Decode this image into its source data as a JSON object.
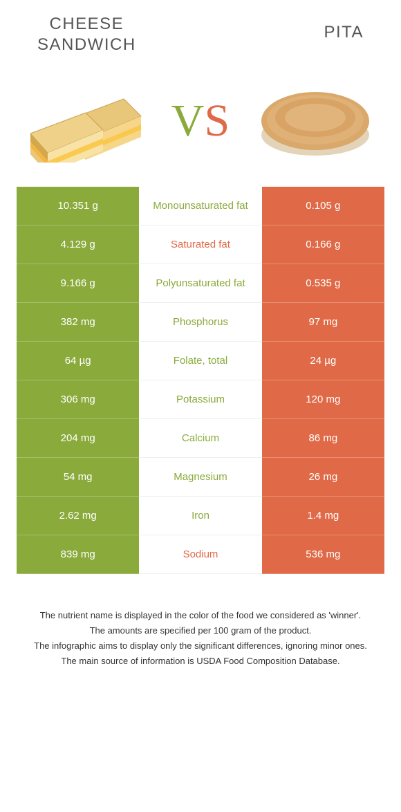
{
  "header": {
    "left_title": "CHEESE\nSANDWICH",
    "right_title": "PITA"
  },
  "colors": {
    "left": "#8aaa3b",
    "right": "#e06a47"
  },
  "comparison": {
    "rows": [
      {
        "label": "Monounsaturated fat",
        "left": "10.351 g",
        "right": "0.105 g",
        "winner": "left"
      },
      {
        "label": "Saturated fat",
        "left": "4.129 g",
        "right": "0.166 g",
        "winner": "right"
      },
      {
        "label": "Polyunsaturated fat",
        "left": "9.166 g",
        "right": "0.535 g",
        "winner": "left"
      },
      {
        "label": "Phosphorus",
        "left": "382 mg",
        "right": "97 mg",
        "winner": "left"
      },
      {
        "label": "Folate, total",
        "left": "64 µg",
        "right": "24 µg",
        "winner": "left"
      },
      {
        "label": "Potassium",
        "left": "306 mg",
        "right": "120 mg",
        "winner": "left"
      },
      {
        "label": "Calcium",
        "left": "204 mg",
        "right": "86 mg",
        "winner": "left"
      },
      {
        "label": "Magnesium",
        "left": "54 mg",
        "right": "26 mg",
        "winner": "left"
      },
      {
        "label": "Iron",
        "left": "2.62 mg",
        "right": "1.4 mg",
        "winner": "left"
      },
      {
        "label": "Sodium",
        "left": "839 mg",
        "right": "536 mg",
        "winner": "right"
      }
    ]
  },
  "footnotes": [
    "The nutrient name is displayed in the color of the food we considered as 'winner'.",
    "The amounts are specified per 100 gram of the product.",
    "The infographic aims to display only the significant differences, ignoring minor ones.",
    "The main source of information is USDA Food Composition Database."
  ]
}
